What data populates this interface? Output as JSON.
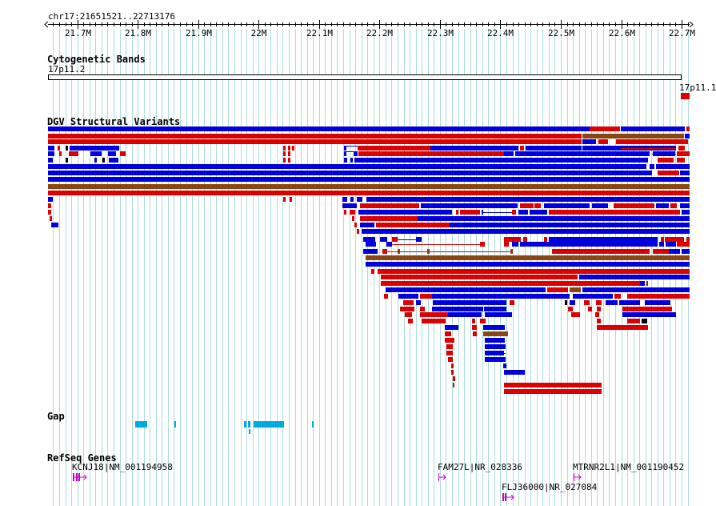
{
  "ruler": {
    "region": "chr17:21651521..22713176",
    "start": 21651521,
    "end": 22713176,
    "ticks": [
      {
        "pos": 21700000,
        "label": "21.7M"
      },
      {
        "pos": 21800000,
        "label": "21.8M"
      },
      {
        "pos": 21900000,
        "label": "21.9M"
      },
      {
        "pos": 22000000,
        "label": "22M"
      },
      {
        "pos": 22100000,
        "label": "22.1M"
      },
      {
        "pos": 22200000,
        "label": "22.2M"
      },
      {
        "pos": 22300000,
        "label": "22.3M"
      },
      {
        "pos": 22400000,
        "label": "22.4M"
      },
      {
        "pos": 22500000,
        "label": "22.5M"
      },
      {
        "pos": 22600000,
        "label": "22.6M"
      },
      {
        "pos": 22700000,
        "label": "22.7M"
      }
    ]
  },
  "tracks": {
    "cytobands": {
      "title": "Cytogenetic Bands",
      "band_name": "17p11.2",
      "next_band_name": "17p11.1"
    },
    "dgv": {
      "title": "DGV Structural Variants",
      "colors": {
        "loss": "#dd0000",
        "gain": "#0000dd",
        "both": "#8b4513"
      }
    },
    "gap": {
      "title": "Gap",
      "color": "#00aadd"
    },
    "refseq": {
      "title": "RefSeq Genes",
      "color": "#cc00cc",
      "genes": [
        {
          "name": "KCNJ18|NM_001194958"
        },
        {
          "name": "FAM27L|NR_028336"
        },
        {
          "name": "MTRNR2L1|NM_001190452"
        },
        {
          "name": "FLJ36000|NR_027084"
        }
      ]
    }
  }
}
